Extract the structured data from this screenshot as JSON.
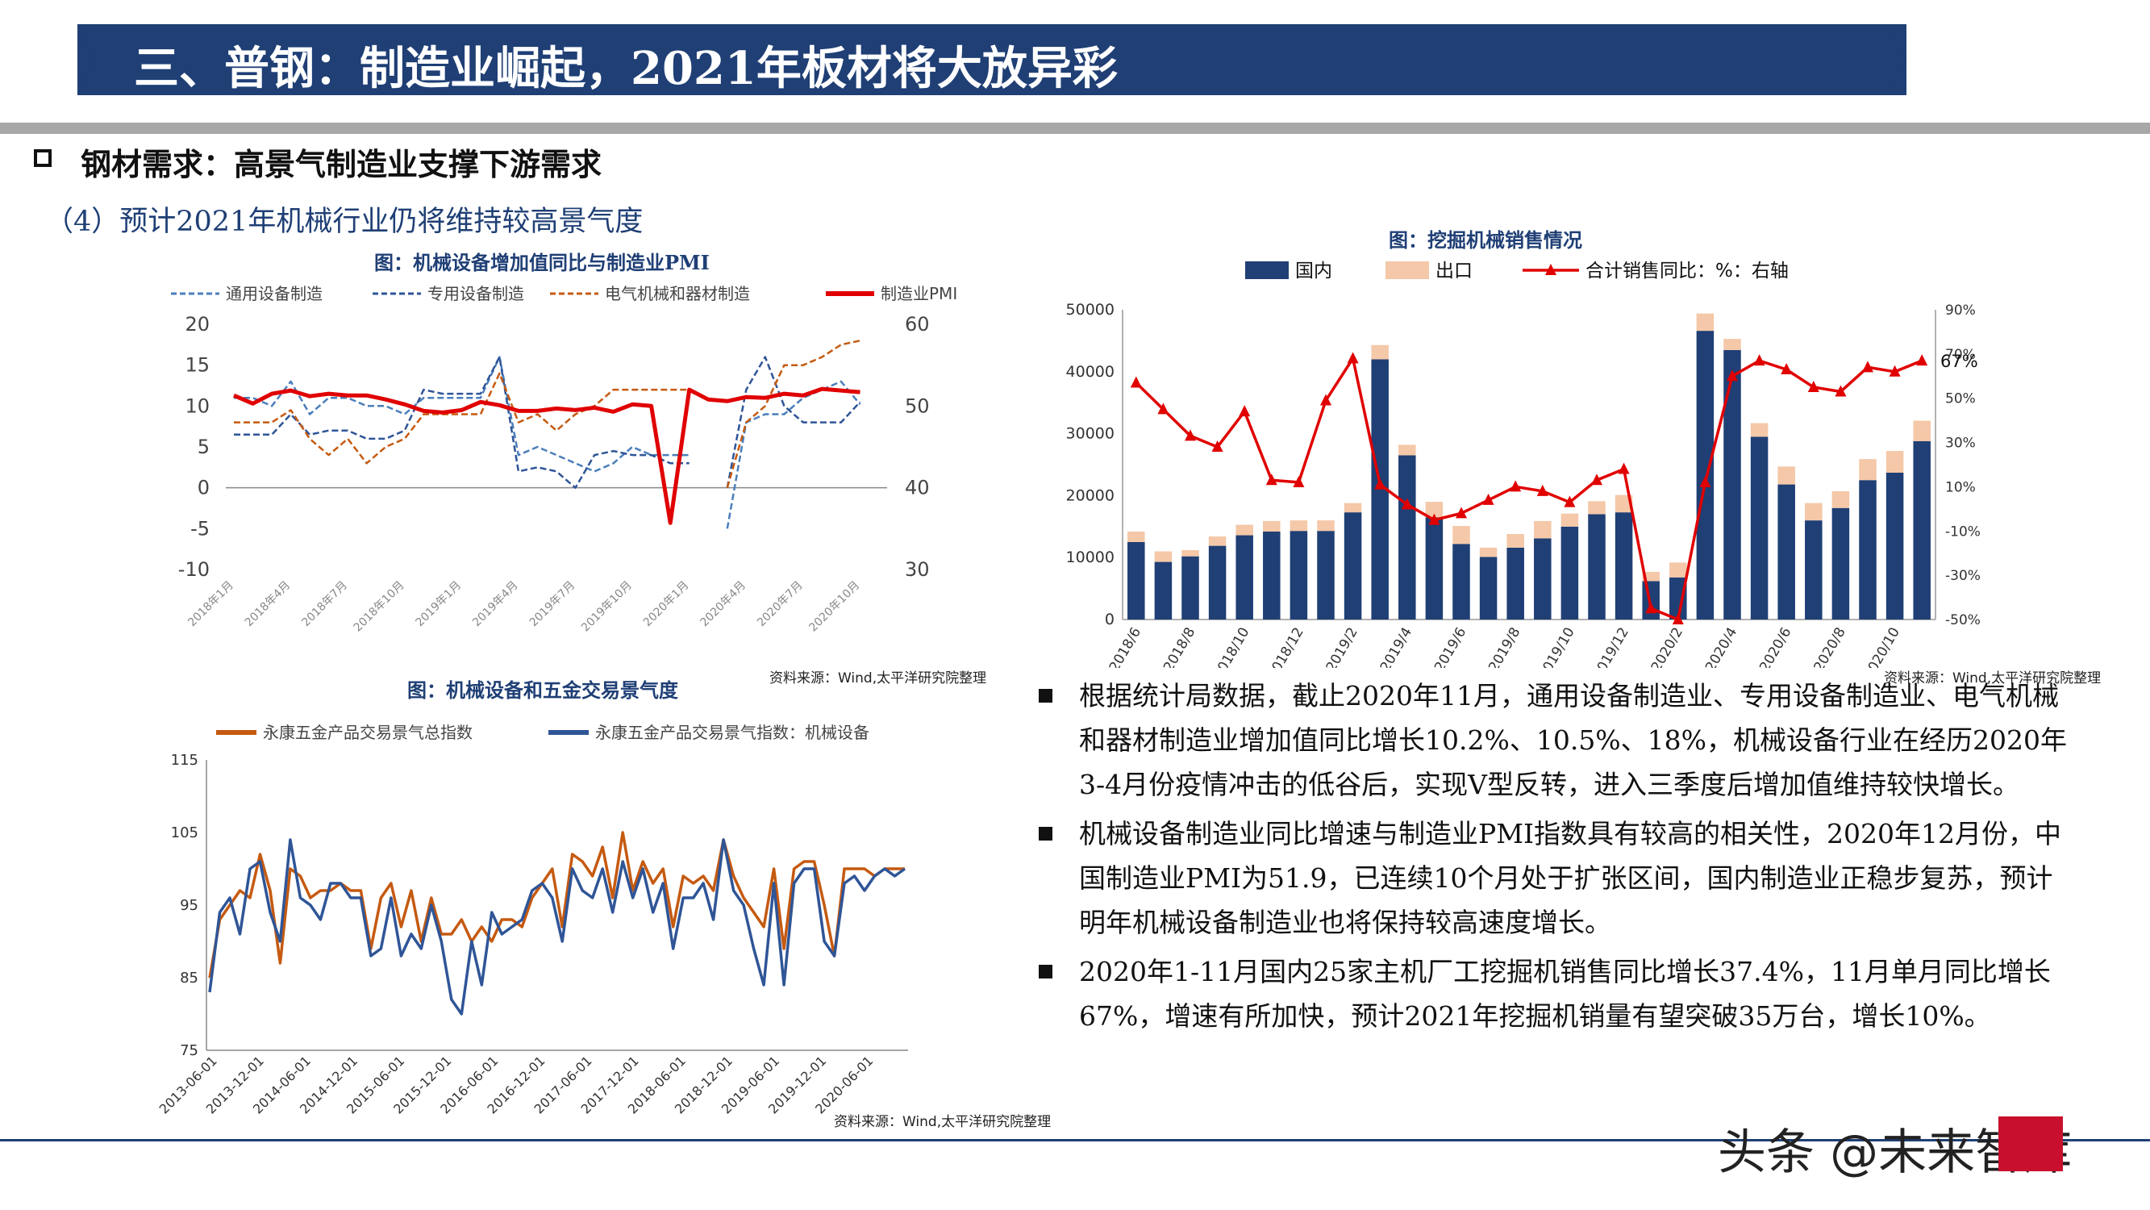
{
  "header": {
    "title": "三、普钢：制造业崛起，2021年板材将大放异彩",
    "section": "钢材需求：高景气制造业支撑下游需求",
    "subsection": "（4）预计2021年机械行业仍将维持较高景气度"
  },
  "colors": {
    "banner": "#1f3f75",
    "navy": "#1f3f75",
    "series_blue": "#4a7ebb",
    "series_navy": "#2f5597",
    "series_orange": "#c55a11",
    "pmi_red": "#e00000",
    "export_pink": "#f4c8a8"
  },
  "chart_data": [
    {
      "id": "chart1",
      "type": "line",
      "title": "图：机械设备增加值同比与制造业PMI",
      "source": "资料来源：Wind,太平洋研究院整理",
      "ylim": [
        -10,
        20
      ],
      "y2lim": [
        30,
        60
      ],
      "y_ticks": [
        "20",
        "15",
        "10",
        "5",
        "0",
        "-5",
        "-10"
      ],
      "y2_ticks": [
        "60",
        "50",
        "40",
        "30"
      ],
      "x_tick_labels": [
        "2018年1月",
        "2018年4月",
        "2018年7月",
        "2018年10月",
        "2019年1月",
        "2019年4月",
        "2019年7月",
        "2019年10月",
        "2020年1月",
        "2020年4月",
        "2020年7月",
        "2020年10月"
      ],
      "series": [
        {
          "name": "通用设备制造",
          "axis": "left",
          "style": "dashed",
          "color": "#4a7ebb",
          "values": [
            11,
            11,
            10,
            13,
            9,
            11,
            11,
            10,
            10,
            9,
            11,
            11,
            11,
            11,
            16,
            4,
            5,
            4,
            3,
            2,
            3,
            5,
            4,
            4,
            4,
            null,
            -5,
            8,
            9,
            9,
            11,
            12,
            13,
            10.2,
            null
          ]
        },
        {
          "name": "专用设备制造",
          "axis": "left",
          "style": "dashed",
          "color": "#2f5597",
          "values": [
            6.5,
            6.5,
            6.5,
            9,
            6.5,
            7,
            7,
            6,
            6,
            7,
            12,
            11.5,
            11.5,
            11.5,
            16,
            2,
            2.5,
            2,
            0,
            4,
            4.5,
            4,
            4,
            3,
            3,
            null,
            0,
            12,
            16,
            10,
            8,
            8,
            8,
            10.5,
            null
          ]
        },
        {
          "name": "电气机械和器材制造",
          "axis": "left",
          "style": "dashed",
          "color": "#c55a11",
          "values": [
            8,
            8,
            8,
            9.5,
            6,
            4,
            6,
            3,
            5,
            6,
            9,
            9,
            9,
            9,
            14,
            8,
            9,
            7,
            9,
            10,
            12,
            12,
            12,
            12,
            12,
            null,
            0,
            8,
            10,
            15,
            15,
            16,
            17.5,
            18,
            null
          ]
        },
        {
          "name": "制造业PMI",
          "axis": "right",
          "style": "solid",
          "color": "#e00000",
          "values": [
            51.3,
            50.3,
            51.5,
            51.9,
            51.2,
            51.5,
            51.3,
            51.3,
            50.8,
            50.2,
            49.4,
            49.2,
            49.5,
            50.5,
            50.1,
            49.4,
            49.4,
            49.7,
            49.5,
            49.8,
            49.3,
            50.2,
            50.0,
            35.7,
            52.0,
            50.8,
            50.6,
            51.1,
            51.0,
            51.5,
            51.3,
            52.1,
            51.9,
            51.7,
            null
          ]
        }
      ]
    },
    {
      "id": "chart2",
      "type": "bar",
      "title": "图：挖掘机械销售情况",
      "source": "资料来源：Wind,太平洋研究院整理",
      "ylim": [
        0,
        50000
      ],
      "y2lim": [
        -50,
        90
      ],
      "y_ticks": [
        "50000",
        "40000",
        "30000",
        "20000",
        "10000",
        "0"
      ],
      "y2_ticks": [
        "90%",
        "70%",
        "50%",
        "30%",
        "10%",
        "-10%",
        "-30%",
        "-50%"
      ],
      "annotation": "67%",
      "categories": [
        "2018/6",
        "2018/7",
        "2018/8",
        "2018/9",
        "2018/10",
        "2018/11",
        "2018/12",
        "2019/1",
        "2019/2",
        "2019/3",
        "2019/4",
        "2019/5",
        "2019/6",
        "2019/7",
        "2019/8",
        "2019/9",
        "2019/10",
        "2019/11",
        "2019/12",
        "2020/1",
        "2020/2",
        "2020/3",
        "2020/4",
        "2020/5",
        "2020/6",
        "2020/7",
        "2020/8",
        "2020/9",
        "2020/10",
        "2020/11"
      ],
      "x_tick_labels": [
        "2018/6",
        "2018/8",
        "2018/10",
        "2018/12",
        "2019/2",
        "2019/4",
        "2019/6",
        "2019/8",
        "2019/10",
        "2019/12",
        "2020/2",
        "2020/4",
        "2020/6",
        "2020/8",
        "2020/10"
      ],
      "series": [
        {
          "name": "国内",
          "axis": "left",
          "type": "bar",
          "color": "#1f3f75",
          "values": [
            12500,
            9300,
            10200,
            11900,
            13600,
            14200,
            14300,
            14300,
            17300,
            42000,
            26500,
            16500,
            12200,
            10100,
            11600,
            13100,
            15000,
            17000,
            17300,
            6200,
            6800,
            46600,
            43500,
            29500,
            21800,
            16000,
            18000,
            22500,
            23700,
            28800
          ]
        },
        {
          "name": "出口",
          "axis": "left",
          "type": "bar",
          "color": "#f4c8a8",
          "values": [
            1700,
            1700,
            1000,
            1500,
            1700,
            1700,
            1700,
            1700,
            1500,
            2300,
            1700,
            2500,
            2900,
            1500,
            2200,
            2800,
            2100,
            2100,
            2800,
            1500,
            2400,
            2800,
            1800,
            2200,
            2900,
            2800,
            2700,
            3400,
            3500,
            3300
          ]
        },
        {
          "name": "合计销售同比：%：右轴",
          "axis": "right",
          "type": "line",
          "color": "#e00000",
          "values": [
            57,
            45,
            33,
            28,
            44,
            13,
            12,
            49,
            68,
            11,
            2,
            -5,
            -2,
            4,
            10,
            8,
            3,
            13,
            18,
            -45,
            -50,
            12,
            60,
            67,
            63,
            55,
            53,
            64,
            62,
            67
          ]
        }
      ]
    },
    {
      "id": "chart3",
      "type": "line",
      "title": "图：机械设备和五金交易景气度",
      "source": "资料来源：Wind,太平洋研究院整理",
      "ylim": [
        75,
        115
      ],
      "y_ticks": [
        "115",
        "105",
        "95",
        "85",
        "75"
      ],
      "x_tick_labels": [
        "2013-06-01",
        "2013-12-01",
        "2014-06-01",
        "2014-12-01",
        "2015-06-01",
        "2015-12-01",
        "2016-06-01",
        "2016-12-01",
        "2017-06-01",
        "2017-12-01",
        "2018-06-01",
        "2018-12-01",
        "2019-06-01",
        "2019-12-01",
        "2020-06-01"
      ],
      "series": [
        {
          "name": "永康五金产品交易景气总指数",
          "color": "#c55a11",
          "values": [
            85,
            93,
            95,
            97,
            96,
            102,
            97,
            87,
            100,
            99,
            96,
            97,
            97,
            98,
            97,
            97,
            89,
            96,
            98,
            92,
            97,
            90,
            96,
            91,
            91,
            93,
            90,
            92,
            90,
            93,
            93,
            92,
            96,
            98,
            100,
            92,
            102,
            101,
            99,
            103,
            96,
            105,
            97,
            101,
            98,
            100,
            92,
            99,
            98,
            99,
            97,
            104,
            99,
            96,
            94,
            92,
            100,
            89,
            100,
            101,
            101,
            95,
            88,
            100,
            100,
            100,
            99,
            100,
            100,
            100
          ]
        },
        {
          "name": "永康五金产品交易景气指数：机械设备",
          "color": "#2f5597",
          "values": [
            83,
            94,
            96,
            91,
            100,
            101,
            94,
            90,
            104,
            96,
            95,
            93,
            98,
            98,
            96,
            96,
            88,
            89,
            96,
            88,
            91,
            89,
            95,
            90,
            82,
            80,
            90,
            84,
            94,
            91,
            92,
            93,
            97,
            98,
            96,
            90,
            100,
            97,
            96,
            100,
            94,
            101,
            96,
            100,
            94,
            98,
            89,
            96,
            96,
            98,
            93,
            104,
            97,
            95,
            89,
            84,
            98,
            84,
            98,
            100,
            100,
            90,
            88,
            98,
            99,
            97,
            99,
            100,
            99,
            100
          ]
        }
      ]
    }
  ],
  "bullets": [
    "根据统计局数据，截止2020年11月，通用设备制造业、专用设备制造业、电气机械和器材制造业增加值同比增长10.2%、10.5%、18%，机械设备行业在经历2020年3-4月份疫情冲击的低谷后，实现V型反转，进入三季度后增加值维持较快增长。",
    "机械设备制造业同比增速与制造业PMI指数具有较高的相关性，2020年12月份，中国制造业PMI为51.9，已连续10个月处于扩张区间，国内制造业正稳步复苏，预计明年机械设备制造业也将保持较高速度增长。",
    "2020年1-11月国内25家主机厂工挖掘机销售同比增长37.4%，11月单月同比增长67%，增速有所加快，预计2021年挖掘机销量有望突破35万台，增长10%。"
  ],
  "watermark": "头条 @未来智库"
}
